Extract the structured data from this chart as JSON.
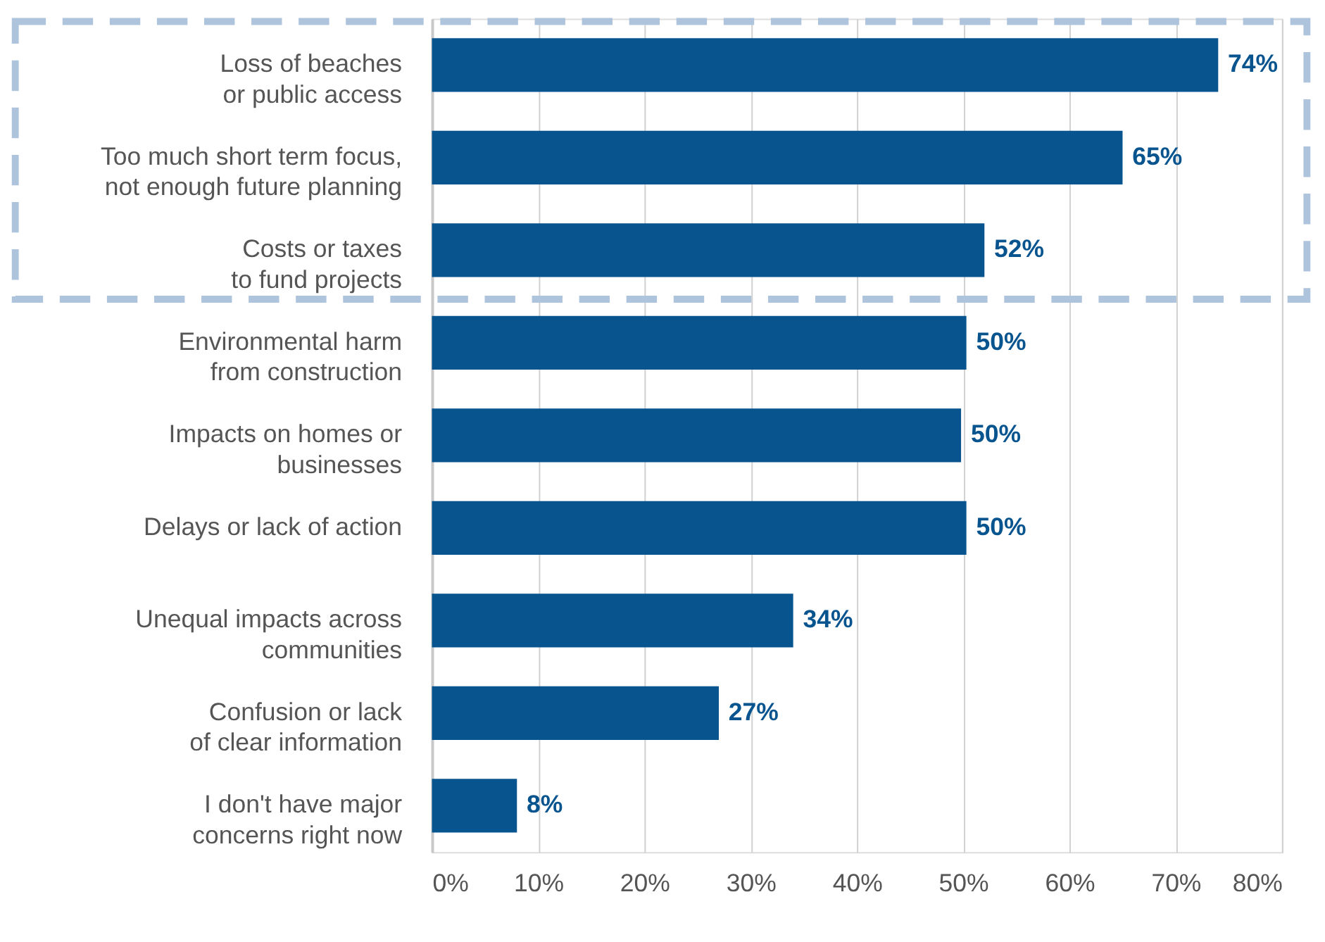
{
  "chart_data": {
    "type": "bar",
    "orientation": "horizontal",
    "categories": [
      "Loss of beaches\nor public access",
      "Too much short term focus,\nnot enough future planning",
      "Costs or taxes\nto fund projects",
      "Environmental harm\nfrom construction",
      "Impacts on homes or\nbusinesses",
      "Delays or lack of action",
      "Unequal impacts across\ncommunities",
      "Confusion or lack\nof clear information",
      "I don't have major\nconcerns right now"
    ],
    "values": [
      74,
      65,
      52,
      50.3,
      49.8,
      50.3,
      34,
      27,
      8
    ],
    "value_labels": [
      "74%",
      "65%",
      "52%",
      "50%",
      "50%",
      "50%",
      "34%",
      "27%",
      "8%"
    ],
    "color": "#08548f",
    "xlim": [
      0,
      80
    ],
    "xticks": [
      {
        "value": 0,
        "label": "0%"
      },
      {
        "value": 10,
        "label": "10%"
      },
      {
        "value": 20,
        "label": "20%"
      },
      {
        "value": 30,
        "label": "30%"
      },
      {
        "value": 40,
        "label": "40%"
      },
      {
        "value": 50,
        "label": "50%"
      },
      {
        "value": 60,
        "label": "60%"
      },
      {
        "value": 70,
        "label": "70%"
      },
      {
        "value": 80,
        "label": "80%"
      }
    ],
    "grid": "x"
  }
}
